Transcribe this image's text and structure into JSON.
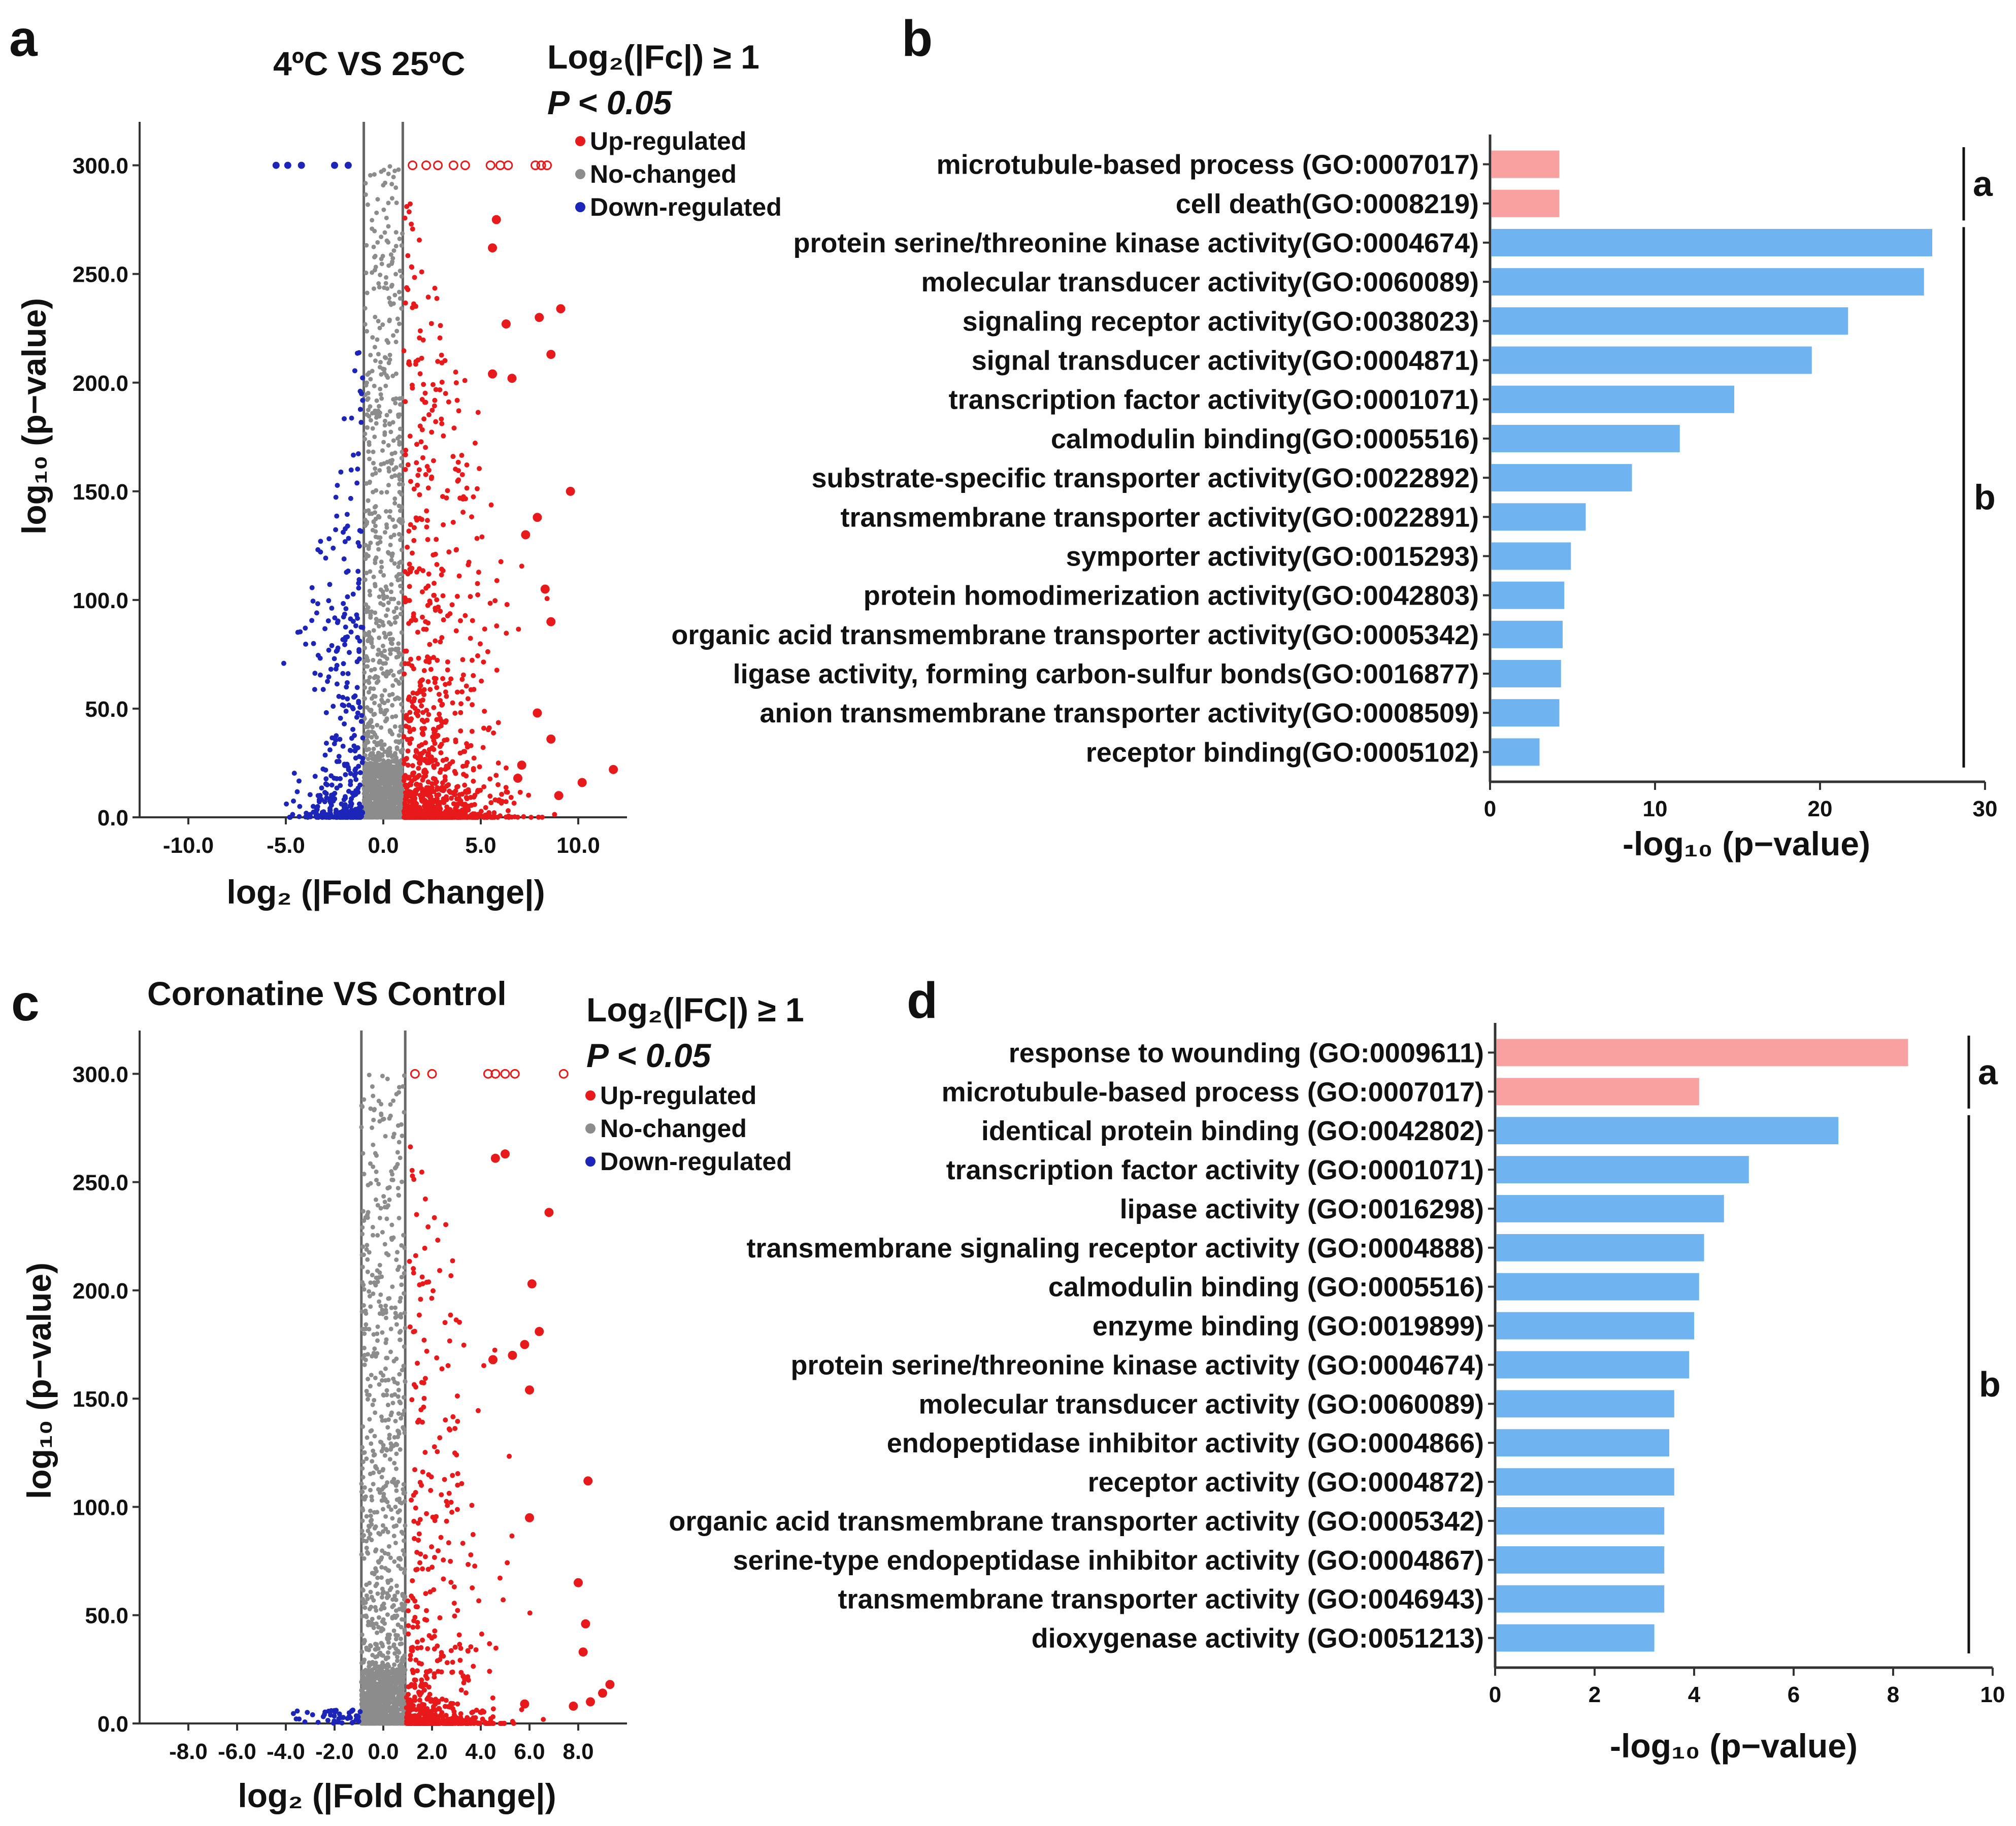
{
  "colors": {
    "up": "#e8191b",
    "nochange": "#8c8c8c",
    "down": "#1c25b8",
    "bar_a": "#f9a0a0",
    "bar_b": "#6fb4f0",
    "axis": "#333333"
  },
  "chart_data": [
    {
      "panel": "a",
      "type": "scatter",
      "title": "4ºC VS 25ºC",
      "threshold_line1": "Log₂(|Fc|) ≥ 1",
      "threshold_line2": "P < 0.05",
      "xlabel": "log₂ (|Fold Change|)",
      "ylabel": "log₁₀ (p−value)",
      "xlim": [
        -12.5,
        12.5
      ],
      "ylim": [
        0,
        320
      ],
      "xticks": [
        -10,
        -5,
        0,
        5,
        10
      ],
      "xtick_labels": [
        "-10.0",
        "-5.0",
        "0.0",
        "5.0",
        "10.0"
      ],
      "yticks": [
        0,
        50,
        100,
        150,
        200,
        250,
        300
      ],
      "ytick_labels": [
        "0.0",
        "50.0",
        "100.0",
        "150.0",
        "200.0",
        "250.0",
        "300.0"
      ],
      "threshold_x": [
        -1,
        1
      ],
      "legend": [
        "Up-regulated",
        "No-changed",
        "Down-regulated"
      ],
      "up_points_large": [
        [
          5.8,
          275
        ],
        [
          5.6,
          262
        ],
        [
          9.1,
          234
        ],
        [
          8.0,
          230
        ],
        [
          6.3,
          227
        ],
        [
          8.6,
          213
        ],
        [
          5.6,
          204
        ],
        [
          6.6,
          202
        ],
        [
          9.6,
          150
        ],
        [
          7.9,
          138
        ],
        [
          7.3,
          130
        ],
        [
          8.3,
          105
        ],
        [
          8.6,
          90
        ],
        [
          7.9,
          48
        ],
        [
          8.6,
          36
        ],
        [
          10.2,
          16
        ],
        [
          11.8,
          22
        ],
        [
          6.9,
          18
        ],
        [
          7.1,
          24
        ],
        [
          9.0,
          10
        ]
      ],
      "saturated_up_x": [
        1.5,
        2.2,
        2.8,
        3.6,
        4.2,
        5.5,
        6.0,
        6.4,
        7.8,
        8.1,
        8.4
      ],
      "saturated_down_x": [
        -5.5,
        -4.9,
        -4.2,
        -2.5,
        -1.8
      ]
    },
    {
      "panel": "b",
      "type": "bar",
      "orientation": "horizontal",
      "xlabel": "-log₁₀ (p−value)",
      "xlim": [
        0,
        30
      ],
      "xticks": [
        0,
        10,
        20,
        30
      ],
      "categories": [
        "microtubule-based process (GO:0007017)",
        "cell death(GO:0008219)",
        "protein serine/threonine kinase activity(GO:0004674)",
        "molecular transducer activity(GO:0060089)",
        "signaling receptor activity(GO:0038023)",
        "signal transducer activity(GO:0004871)",
        "transcription factor activity(GO:0001071)",
        "calmodulin binding(GO:0005516)",
        "substrate-specific transporter activity(GO:0022892)",
        "transmembrane transporter activity(GO:0022891)",
        "symporter activity(GO:0015293)",
        "protein homodimerization activity(GO:0042803)",
        "organic acid transmembrane transporter activity(GO:0005342)",
        "ligase activity, forming carbon-sulfur bonds(GO:0016877)",
        "anion transmembrane transporter activity(GO:0008509)",
        "receptor binding(GO:0005102)"
      ],
      "values": [
        4.2,
        4.2,
        26.8,
        26.3,
        21.7,
        19.5,
        14.8,
        11.5,
        8.6,
        5.8,
        4.9,
        4.5,
        4.4,
        4.3,
        4.2,
        3.0
      ],
      "groups": [
        "a",
        "a",
        "b",
        "b",
        "b",
        "b",
        "b",
        "b",
        "b",
        "b",
        "b",
        "b",
        "b",
        "b",
        "b",
        "b"
      ],
      "group_labels": [
        "a",
        "b"
      ]
    },
    {
      "panel": "c",
      "type": "scatter",
      "title": "Coronatine VS Control",
      "threshold_line1": "Log₂(|FC|) ≥ 1",
      "threshold_line2": "P < 0.05",
      "xlabel": "log₂ (|Fold Change|)",
      "ylabel": "log₁₀ (p−value)",
      "xlim": [
        -10,
        10
      ],
      "ylim": [
        0,
        320
      ],
      "xticks": [
        -8,
        -6,
        -4,
        -2,
        0,
        2,
        4,
        6,
        8
      ],
      "xtick_labels": [
        "-8.0",
        "-6.0",
        "-4.0",
        "-2.0",
        "0.0",
        "2.0",
        "4.0",
        "6.0",
        "8.0"
      ],
      "yticks": [
        0,
        50,
        100,
        150,
        200,
        250,
        300
      ],
      "ytick_labels": [
        "0.0",
        "50.0",
        "100.0",
        "150.0",
        "200.0",
        "250.0",
        "300.0"
      ],
      "threshold_x": [
        -0.9,
        0.9
      ],
      "legend": [
        "Up-regulated",
        "No-changed",
        "Down-regulated"
      ],
      "up_points_large": [
        [
          4.6,
          261
        ],
        [
          5.0,
          263
        ],
        [
          6.8,
          236
        ],
        [
          6.1,
          203
        ],
        [
          6.4,
          181
        ],
        [
          5.8,
          175
        ],
        [
          4.5,
          168
        ],
        [
          5.3,
          170
        ],
        [
          6.0,
          154
        ],
        [
          8.4,
          112
        ],
        [
          6.0,
          95
        ],
        [
          8.0,
          65
        ],
        [
          8.3,
          46
        ],
        [
          8.2,
          33
        ],
        [
          9.3,
          18
        ],
        [
          9.0,
          14
        ],
        [
          8.5,
          10
        ],
        [
          7.8,
          8
        ],
        [
          5.8,
          9
        ]
      ],
      "saturated_up_x": [
        1.3,
        2.0,
        4.3,
        4.6,
        5.0,
        5.4,
        7.4
      ]
    },
    {
      "panel": "d",
      "type": "bar",
      "orientation": "horizontal",
      "xlabel": "-log₁₀ (p−value)",
      "xlim": [
        0,
        10
      ],
      "xticks": [
        0,
        2,
        4,
        6,
        8,
        10
      ],
      "categories": [
        "response to wounding (GO:0009611)",
        "microtubule-based process (GO:0007017)",
        "identical protein binding (GO:0042802)",
        "transcription factor activity (GO:0001071)",
        "lipase activity (GO:0016298)",
        "transmembrane signaling receptor activity (GO:0004888)",
        "calmodulin binding (GO:0005516)",
        "enzyme binding (GO:0019899)",
        "protein serine/threonine kinase activity (GO:0004674)",
        "molecular transducer activity (GO:0060089)",
        "endopeptidase inhibitor activity (GO:0004866)",
        "receptor activity (GO:0004872)",
        "organic acid transmembrane transporter activity (GO:0005342)",
        "serine-type endopeptidase inhibitor activity (GO:0004867)",
        "transmembrane transporter activity (GO:0046943)",
        "dioxygenase activity (GO:0051213)"
      ],
      "values": [
        8.3,
        4.1,
        6.9,
        5.1,
        4.6,
        4.2,
        4.1,
        4.0,
        3.9,
        3.6,
        3.5,
        3.6,
        3.4,
        3.4,
        3.4,
        3.2
      ],
      "groups": [
        "a",
        "a",
        "b",
        "b",
        "b",
        "b",
        "b",
        "b",
        "b",
        "b",
        "b",
        "b",
        "b",
        "b",
        "b",
        "b"
      ],
      "group_labels": [
        "a",
        "b"
      ]
    }
  ]
}
